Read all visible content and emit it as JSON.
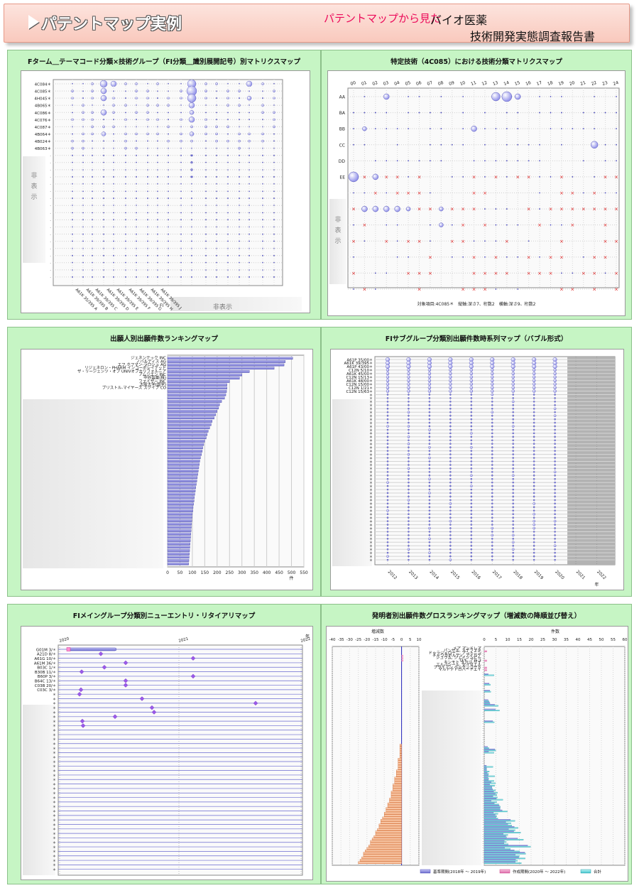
{
  "header": {
    "title": "パテントマップ実例",
    "subtitle_pink": "パテントマップから見た",
    "subtitle_black": "バイオ医薬",
    "subtitle_line2": "技術開発実態調査報告書"
  },
  "hidden_label": "非表示",
  "hidden_label_vertical": [
    "非",
    "表",
    "示"
  ],
  "chart_data": [
    {
      "id": "p1",
      "type": "scatter",
      "title": "Fターム＿テーマコード分類×技術グループ（FI分類＿識別展開記号）別マトリクスマップ",
      "y_categories": [
        "4C084",
        "4C085",
        "4H045",
        "4B065",
        "4C086",
        "4C076",
        "4C087",
        "4B064",
        "4B024",
        "4B063"
      ],
      "x_categories": [
        "A61K 35/395 A",
        "A61K 39/395 B",
        "A61K 39/395 C",
        "A61K 39/395 D",
        "A61K 39/395 E",
        "A61K 39/395 F",
        "A61K 39/395 G",
        "A61K 39/395 H",
        "A61K 39/395 J"
      ],
      "x_title": "FI",
      "extra_rows": 18
    },
    {
      "id": "p2",
      "type": "scatter",
      "title": "特定技術（4C085）における技術分類マトリクスマップ",
      "x_categories": [
        "00",
        "01",
        "02",
        "03",
        "04",
        "05",
        "06",
        "07",
        "08",
        "09",
        "10",
        "11",
        "12",
        "13",
        "14",
        "15",
        "16",
        "17",
        "18",
        "19",
        "20",
        "21",
        "22",
        "23",
        "24"
      ],
      "y_categories": [
        "AA",
        "BA",
        "BB",
        "CC",
        "DD",
        "EE"
      ],
      "footnote": "対象項目:4C085＊　縦軸:深さ7、桁数2　横軸:深さ9、桁数2"
    },
    {
      "id": "p3",
      "type": "bar",
      "title": "出願人別出願件数ランキングマップ",
      "categories": [
        "ジェネンテック INC",
        "ノバルティス AG",
        "エフ.ホフマン-ラロシュ AG",
        "リジェネロン・PHARM インコーポレイテッド",
        "ザ・リージェンツ・オブ UNIVオブカリフォルニア",
        "アムジエン INC",
        "中外製薬(株)",
        "ファイザー INC",
        "大阪大学(国学)",
        "ブリストル-マイヤーズ スクイブ CO"
      ],
      "values": [
        505,
        475,
        470,
        430,
        330,
        300,
        290,
        250,
        240,
        240
      ],
      "hidden_values": [
        238,
        235,
        230,
        218,
        210,
        206,
        200,
        194,
        188,
        180,
        176,
        170,
        164,
        160,
        156,
        150,
        146,
        142,
        140,
        137,
        133,
        130,
        128,
        126,
        124,
        122,
        120,
        118,
        116,
        114,
        112,
        110,
        108,
        107,
        105,
        103,
        102,
        100,
        99,
        98,
        97,
        96,
        95,
        94,
        93,
        92,
        91,
        90,
        89,
        88,
        87,
        86,
        85
      ],
      "xlim": [
        0,
        550
      ],
      "xticks": [
        0,
        50,
        100,
        150,
        200,
        250,
        300,
        350,
        400,
        450,
        500,
        550
      ],
      "xlabel": "件"
    },
    {
      "id": "p4",
      "type": "scatter",
      "title": "FIサブグループ分類別出願件数時系列マップ（バブル形式）",
      "y_categories": [
        "A61P 35/00",
        "A61K 39/395",
        "A61P 43/00",
        "C12N 5/10",
        "A61K 45/00",
        "C12N 15/13",
        "A61K 48/00",
        "C12N 15/00",
        "C12N 1/21",
        "C12N 15/63"
      ],
      "x_categories": [
        "2012",
        "2013",
        "2014",
        "2015",
        "2016",
        "2017",
        "2018",
        "2019",
        "2020",
        "2021",
        "2022"
      ],
      "x_unit": "年",
      "extra_rows": 48
    },
    {
      "id": "p5",
      "type": "scatter",
      "title": "FIメイングループ分類別ニューエントリ・リタイアリマップ",
      "y_categories": [
        "G01M 3/",
        "A21D 8/",
        "A61G 10/",
        "A61M 36/",
        "B03C 1/",
        "B30B 11/",
        "B60P 3/",
        "B64C 13/",
        "C03B 20/",
        "C03C 3/"
      ],
      "x_ticks": [
        "2020",
        "2021",
        "2022"
      ],
      "x_unit": "年",
      "extra_rows": 40
    },
    {
      "id": "p6",
      "type": "bar",
      "title": "発明者別出願件数グロスランキングマップ（増減数の降順並び替え）",
      "left_axis_title": "増減数",
      "left_ticks": [
        "-40",
        "-35",
        "-30",
        "-25",
        "-20",
        "-15",
        "-10",
        "-5",
        "0",
        "5",
        "10"
      ],
      "right_axis_title": "件数",
      "right_ticks": [
        "0",
        "5",
        "10",
        "15",
        "20",
        "25",
        "30",
        "35",
        "40",
        "45",
        "50",
        "55",
        "60"
      ],
      "categories": [
        "メア アンドレア",
        "パンセル, ステファネ",
        "ドゥラジェローニ, アントニン",
        "チャウラボルティ, アイルデ",
        "シュウム, ジェイソンビー",
        "ロイ, アルコ",
        "キンモト タカシ サイ",
        "エルバシール, セイダエル",
        "ブライアン ベッケンコート",
        "マルドナドロバートエイ"
      ],
      "legend": [
        "基準期間(2018年 ～ 2019年)",
        "作成期間(2020年 ～ 2022年)",
        "合計"
      ]
    }
  ]
}
